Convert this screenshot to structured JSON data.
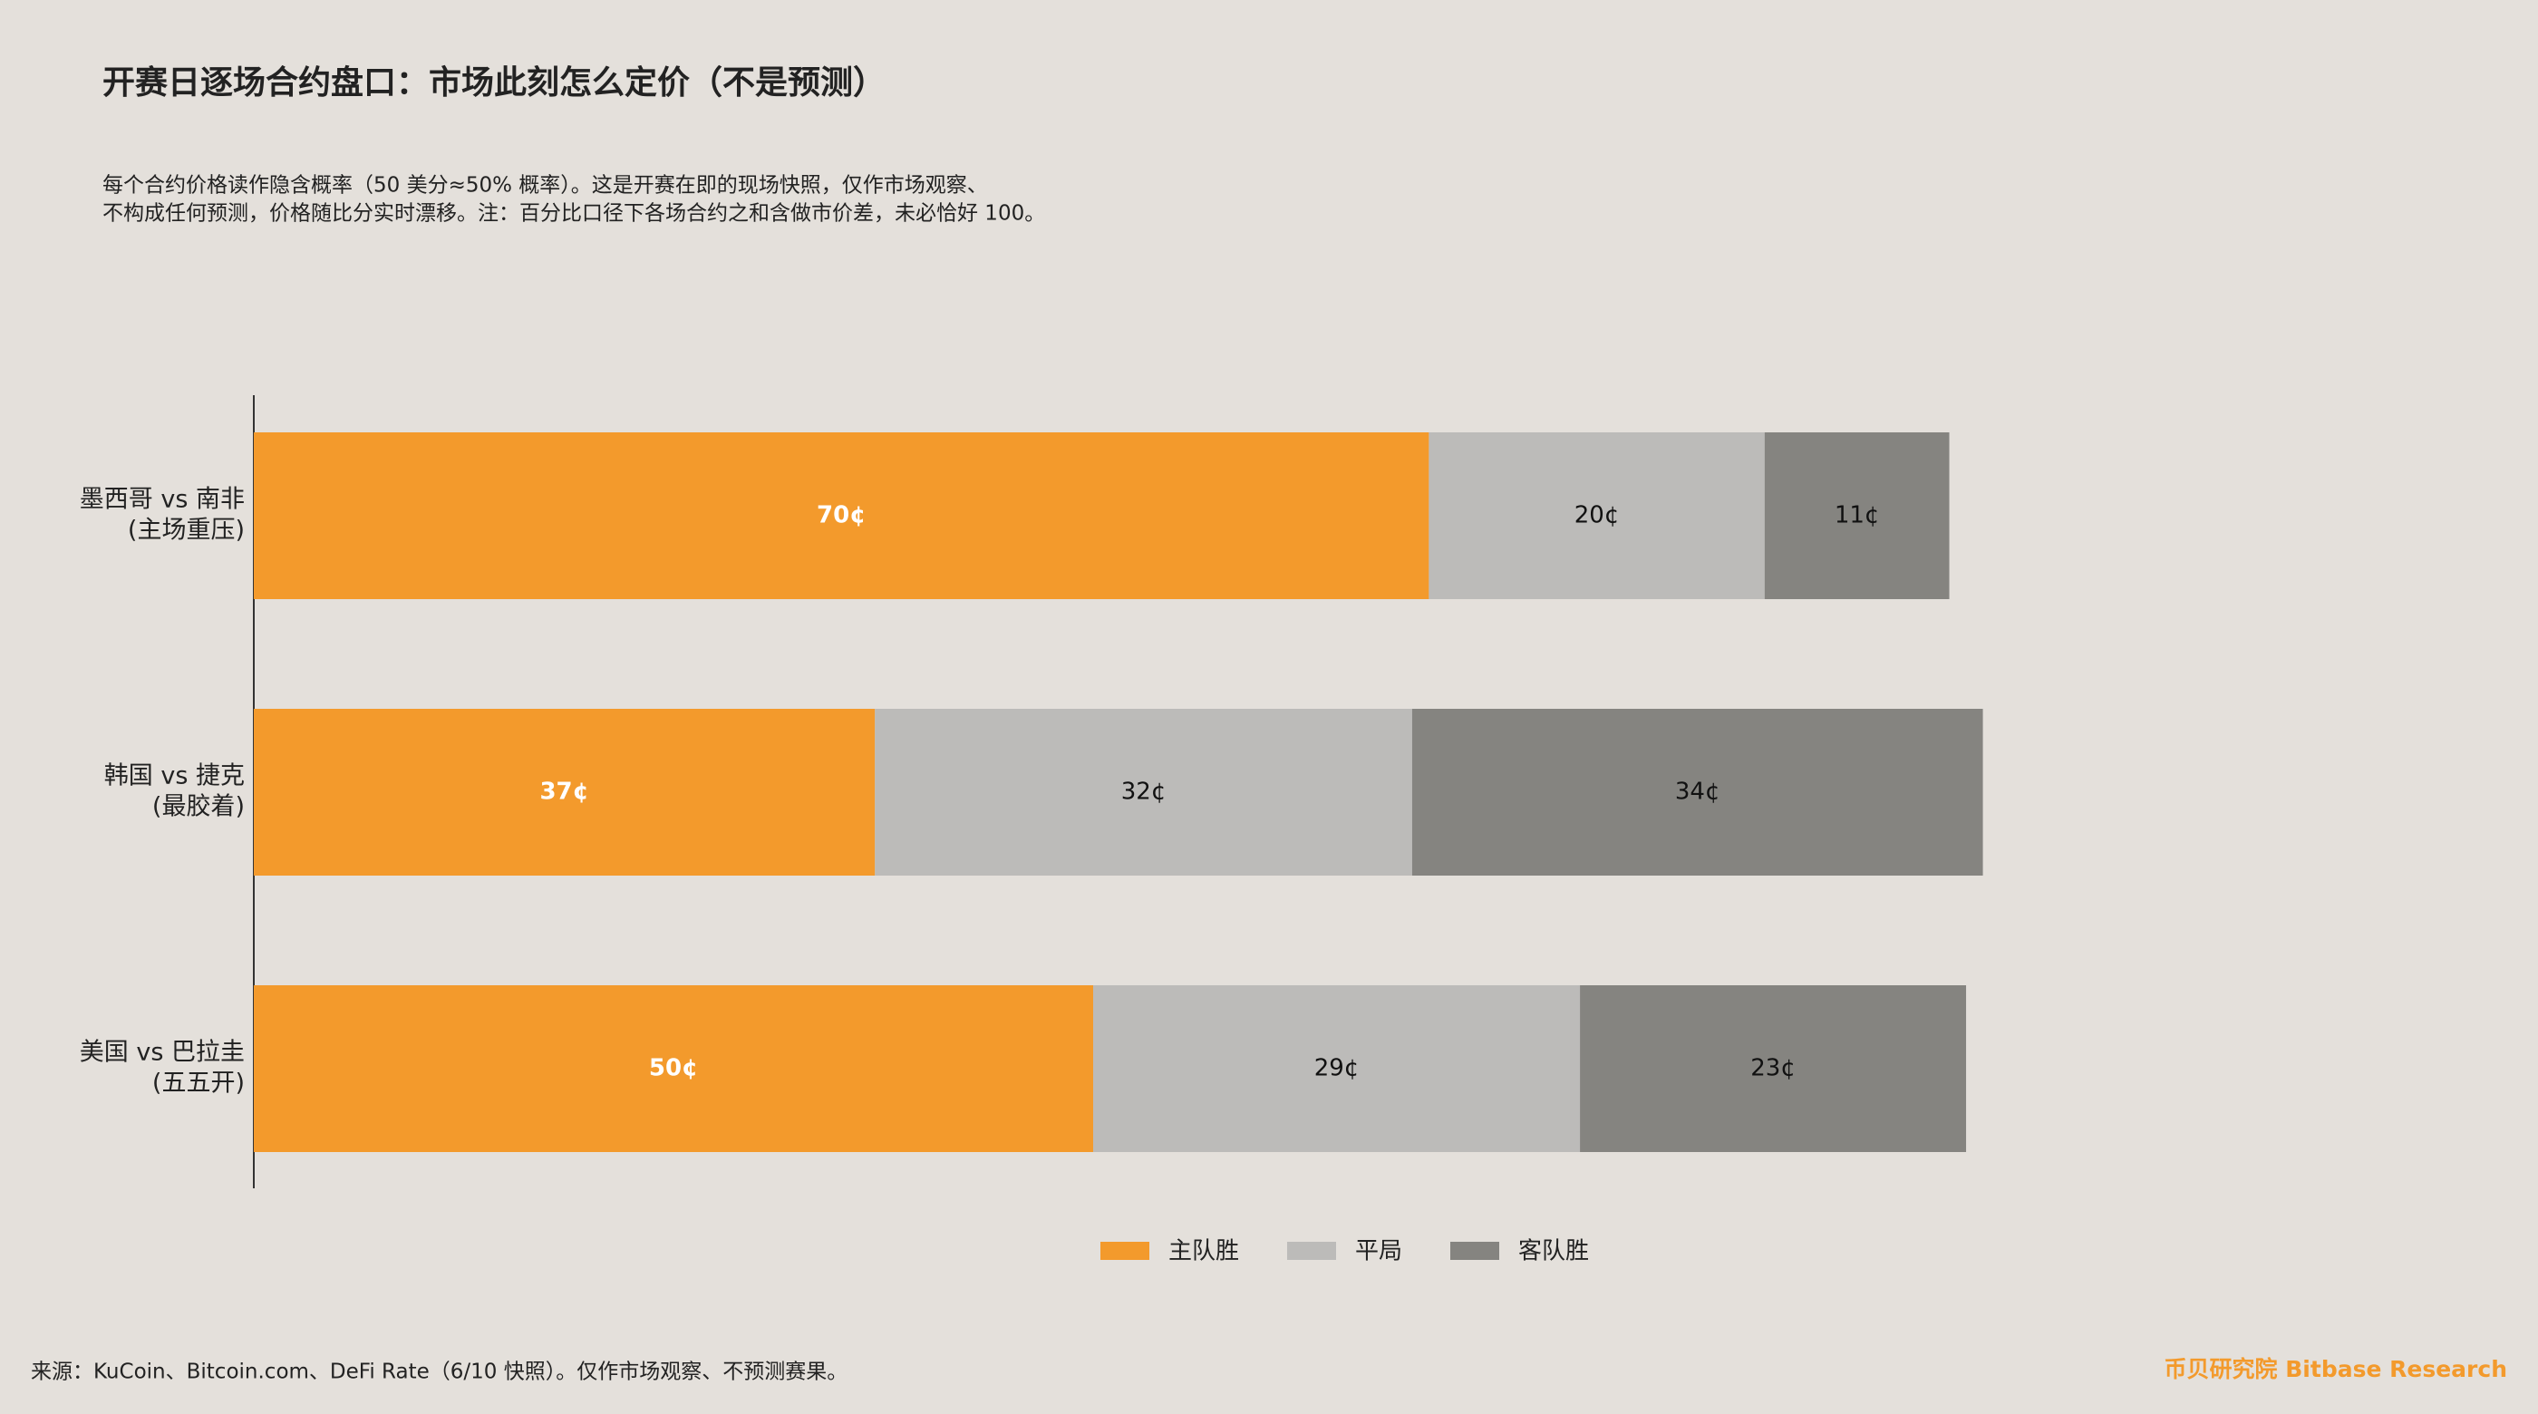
{
  "chart_data": {
    "type": "stacked-bar-horizontal",
    "title": "开赛日逐场合约盘口：市场此刻怎么定价（不是预测）",
    "subtitle": [
      "每个合约价格读作隐含概率（50 美分≈50% 概率）。这是开赛在即的现场快照，仅作市场观察、",
      "不构成任何预测，价格随比分实时漂移。注：百分比口径下各场合约之和含做市价差，未必恰好 100。"
    ],
    "categories": [
      [
        "墨西哥 vs 南非",
        "(主场重压)"
      ],
      [
        "韩国 vs 捷克",
        "(最胶着)"
      ],
      [
        "美国 vs 巴拉圭",
        "(五五开)"
      ]
    ],
    "series": [
      {
        "name": "主队胜",
        "color": "#f39a2c",
        "label_color": "#ffffff",
        "values": [
          70,
          37,
          50
        ],
        "value_labels": [
          "70¢",
          "37¢",
          "50¢"
        ]
      },
      {
        "name": "平局",
        "color": "#bcbbb9",
        "label_color": "#111111",
        "values": [
          20,
          32,
          29
        ],
        "value_labels": [
          "20¢",
          "32¢",
          "29¢"
        ]
      },
      {
        "name": "客队胜",
        "color": "#858480",
        "label_color": "#111111",
        "values": [
          11,
          34,
          23
        ],
        "value_labels": [
          "11¢",
          "34¢",
          "23¢"
        ]
      }
    ],
    "xlim": [
      0,
      100
    ],
    "legend": "bottom",
    "source": "来源：KuCoin、Bitcoin.com、DeFi Rate（6/10 快照）。仅作市场观察、不预测赛果。",
    "brand": "币贝研究院 Bitbase Research"
  }
}
